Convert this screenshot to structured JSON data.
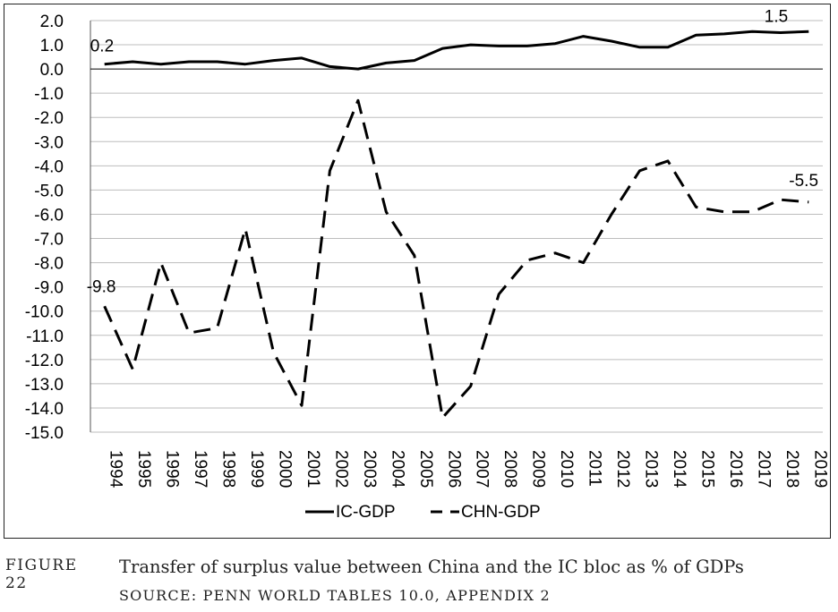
{
  "chart_data": {
    "type": "line",
    "title": "",
    "xlabel": "",
    "ylabel": "",
    "x": [
      "1994",
      "1995",
      "1996",
      "1997",
      "1998",
      "1999",
      "2000",
      "2001",
      "2002",
      "2003",
      "2004",
      "2005",
      "2006",
      "2007",
      "2008",
      "2009",
      "2010",
      "2011",
      "2012",
      "2013",
      "2014",
      "2015",
      "2016",
      "2017",
      "2018",
      "2019"
    ],
    "ylim": [
      -15.0,
      2.0
    ],
    "y_ticks": [
      "2.0",
      "1.0",
      "0.0",
      "-1.0",
      "-2.0",
      "-3.0",
      "-4.0",
      "-5.0",
      "-6.0",
      "-7.0",
      "-8.0",
      "-9.0",
      "-10.0",
      "-11.0",
      "-12.0",
      "-13.0",
      "-14.0",
      "-15.0"
    ],
    "grid": "horizontal",
    "legend_position": "bottom",
    "series": [
      {
        "name": "IC-GDP",
        "style": "solid",
        "color": "#000000",
        "values": [
          0.2,
          0.3,
          0.2,
          0.3,
          0.3,
          0.2,
          0.35,
          0.45,
          0.1,
          0.0,
          0.25,
          0.35,
          0.85,
          1.0,
          0.95,
          0.95,
          1.05,
          1.35,
          1.15,
          0.9,
          0.9,
          1.4,
          1.45,
          1.55,
          1.5,
          1.55
        ]
      },
      {
        "name": "CHN-GDP",
        "style": "dashed",
        "color": "#000000",
        "values": [
          -9.8,
          -12.4,
          -8.0,
          -10.9,
          -10.7,
          -6.6,
          -11.7,
          -13.9,
          -4.2,
          -1.3,
          -5.9,
          -7.7,
          -14.4,
          -13.1,
          -9.3,
          -7.9,
          -7.6,
          -8.0,
          -6.0,
          -4.2,
          -3.8,
          -5.7,
          -5.9,
          -5.9,
          -5.4,
          -5.5
        ]
      }
    ],
    "annotations": [
      {
        "text": "0.2",
        "series": 0,
        "x": "1994"
      },
      {
        "text": "1.5",
        "series": 0,
        "x": "2018"
      },
      {
        "text": "-9.8",
        "series": 1,
        "x": "1994"
      },
      {
        "text": "-5.5",
        "series": 1,
        "x": "2019"
      }
    ]
  },
  "caption": {
    "figure_number": "FIGURE 22",
    "title": "Transfer of surplus value between China and the IC bloc as % of GDPs",
    "source": "SOURCE: PENN WORLD TABLES 10.0, APPENDIX 2"
  }
}
